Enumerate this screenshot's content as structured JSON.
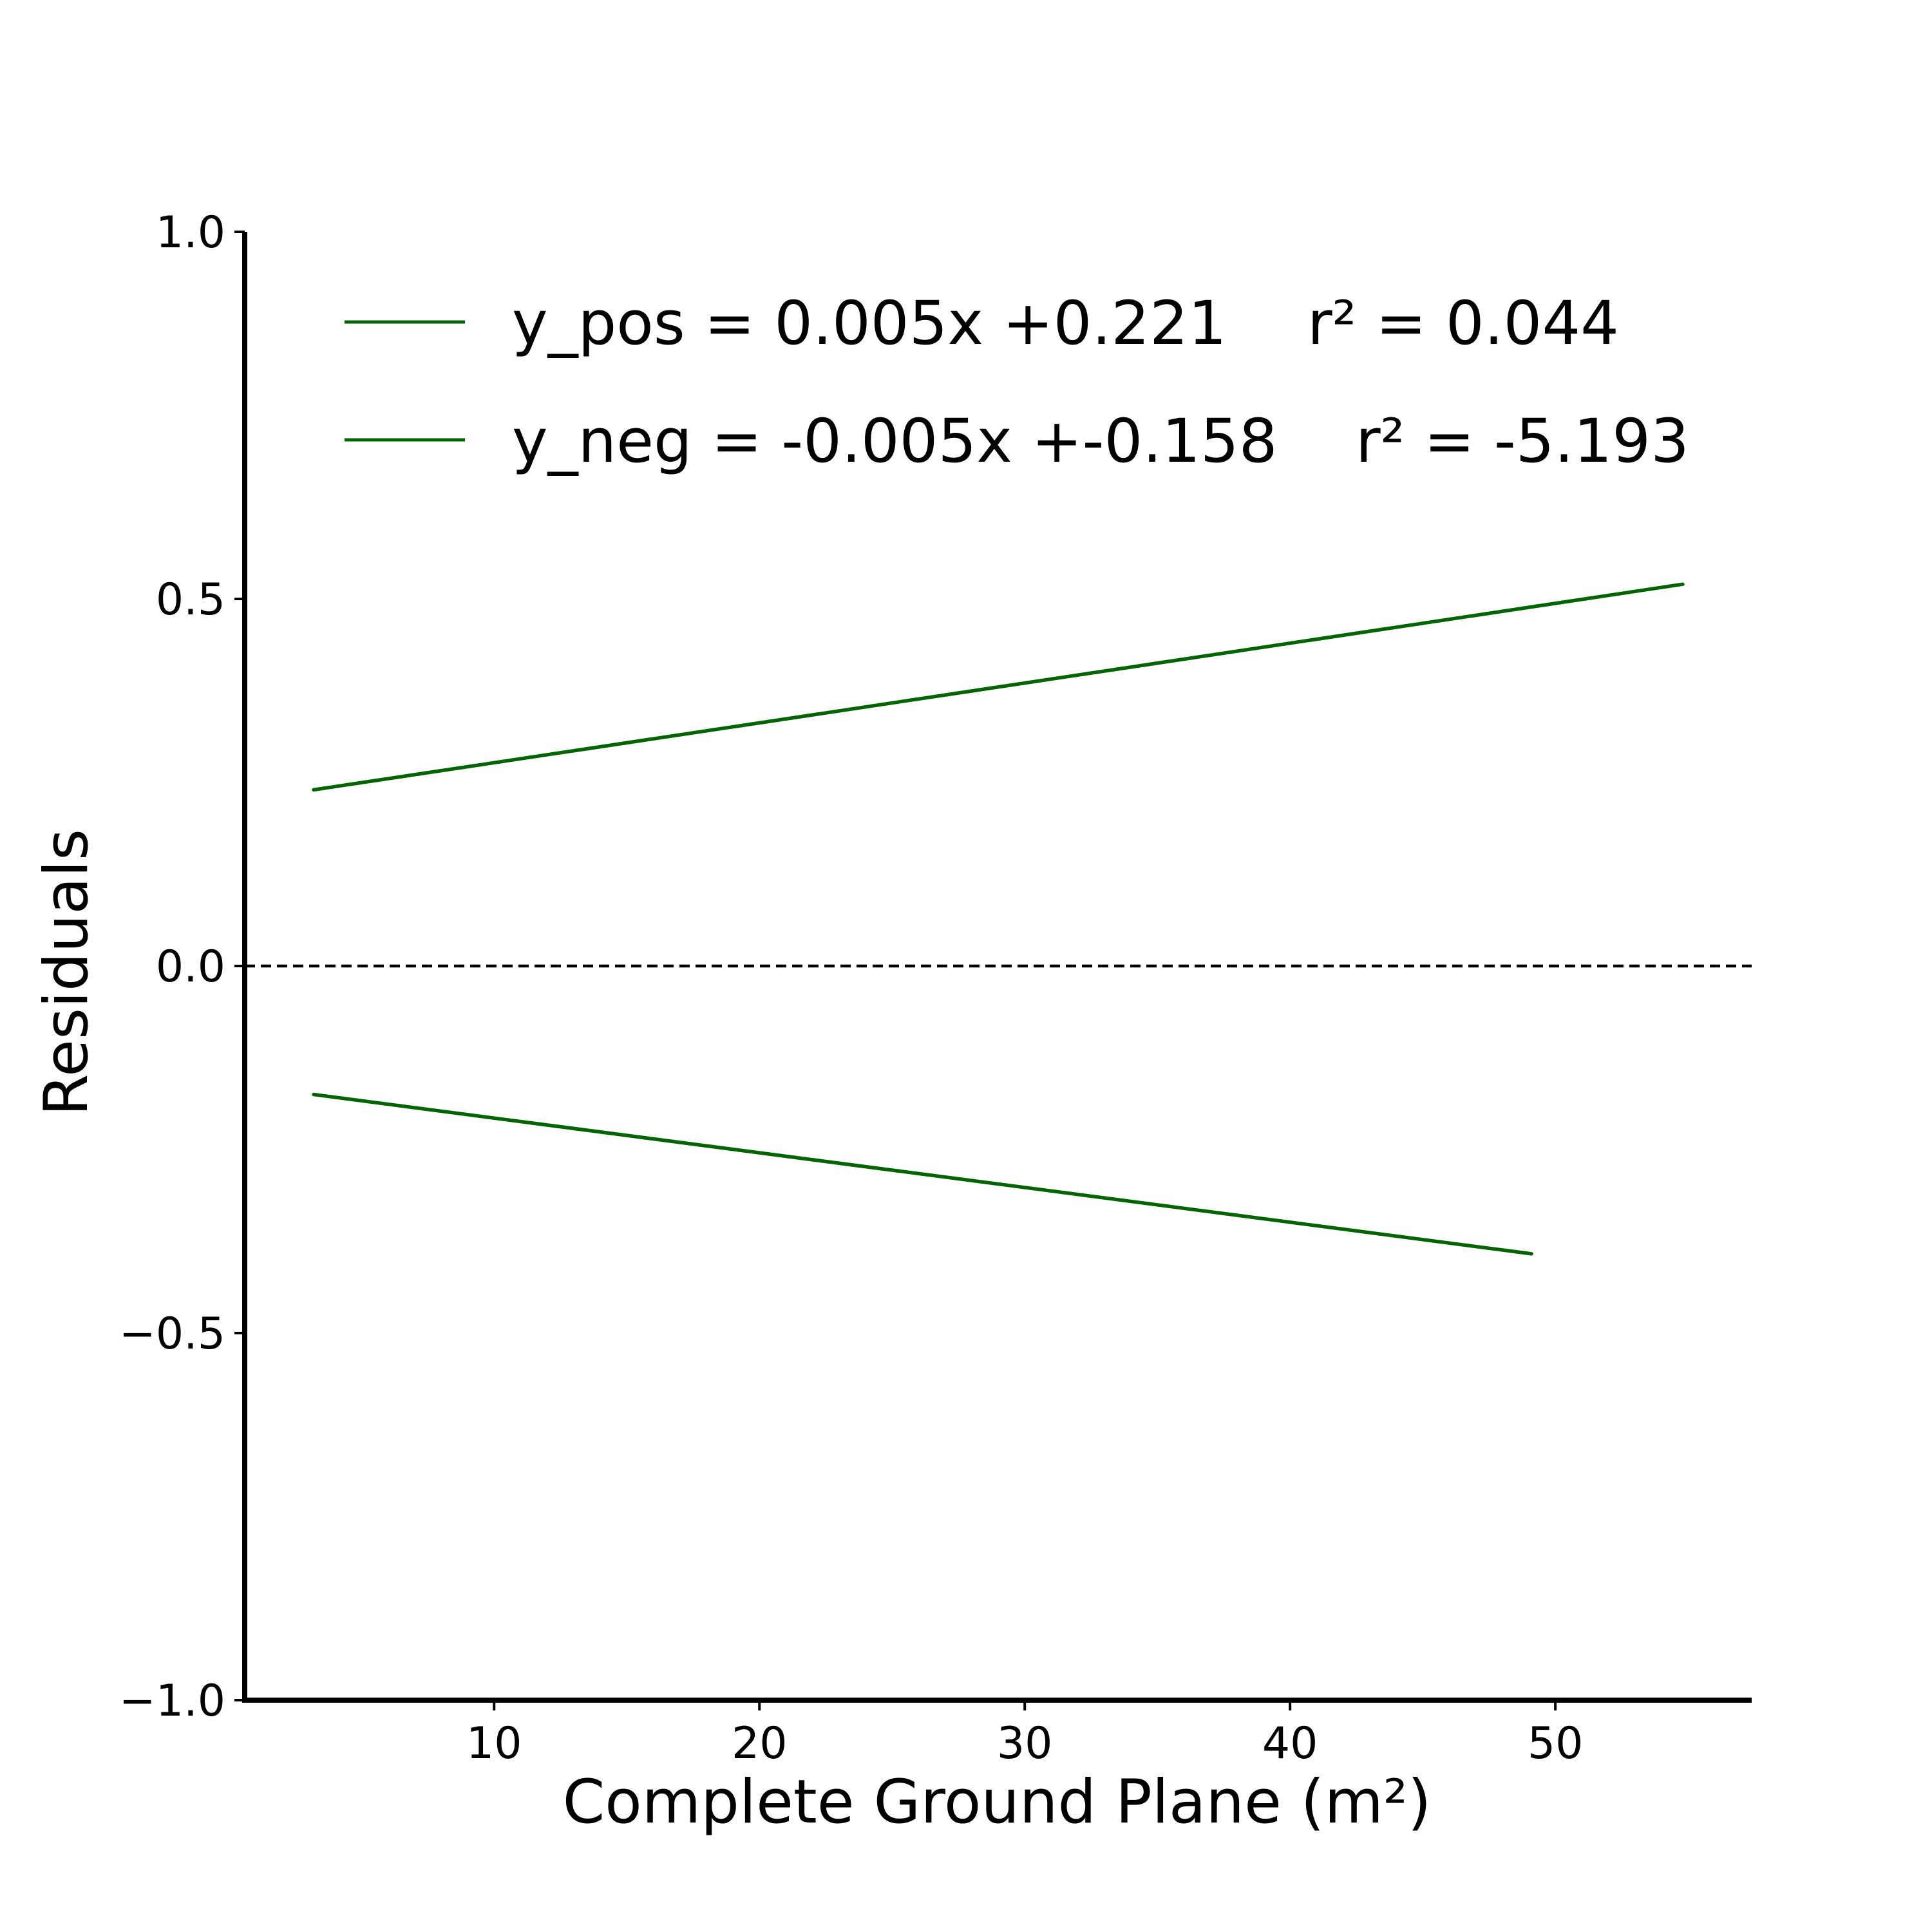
{
  "chart_data": {
    "type": "line",
    "xlabel": "Complete Ground Plane (m²)",
    "ylabel": "Residuals",
    "xlim": [
      0.6,
      57.4
    ],
    "ylim": [
      -1.0,
      1.0
    ],
    "x_ticks": [
      10,
      20,
      30,
      40,
      50
    ],
    "x_tick_labels": [
      "10",
      "20",
      "30",
      "40",
      "50"
    ],
    "y_ticks": [
      -1.0,
      -0.5,
      0.0,
      0.5,
      1.0
    ],
    "y_tick_labels": [
      "−1.0",
      "−0.5",
      "0.0",
      "0.5",
      "1.0"
    ],
    "grid": false,
    "legend_position": "top-left",
    "reference_line": {
      "y": 0.0,
      "style": "dashed",
      "color": "#000000"
    },
    "series": [
      {
        "legend_equation": "y_pos = 0.005x +0.221",
        "legend_r2": "r² = 0.044",
        "color": "#006400",
        "x": [
          3.2,
          54.8
        ],
        "y": [
          0.24,
          0.52
        ]
      },
      {
        "legend_equation": "y_neg = -0.005x +-0.158",
        "legend_r2": "r² = -5.193",
        "color": "#006400",
        "x": [
          3.2,
          49.1
        ],
        "y": [
          -0.175,
          -0.392
        ]
      }
    ]
  }
}
